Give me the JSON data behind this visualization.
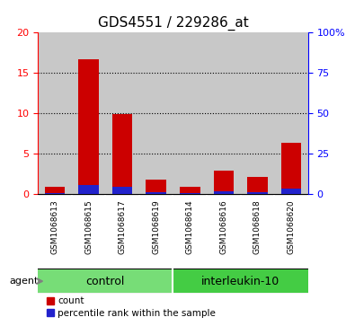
{
  "title": "GDS4551 / 229286_at",
  "samples": [
    "GSM1068613",
    "GSM1068615",
    "GSM1068617",
    "GSM1068619",
    "GSM1068614",
    "GSM1068616",
    "GSM1068618",
    "GSM1068620"
  ],
  "counts": [
    0.9,
    16.7,
    9.9,
    1.8,
    0.9,
    2.9,
    2.1,
    6.3
  ],
  "percentiles": [
    0.3,
    5.8,
    4.5,
    1.0,
    0.3,
    1.5,
    1.1,
    3.1
  ],
  "groups": [
    {
      "label": "control",
      "indices": [
        0,
        1,
        2,
        3
      ]
    },
    {
      "label": "interleukin-10",
      "indices": [
        4,
        5,
        6,
        7
      ]
    }
  ],
  "bar_color_red": "#cc0000",
  "bar_color_blue": "#2222cc",
  "bar_bg_color": "#c8c8c8",
  "group_color_1": "#77dd77",
  "group_color_2": "#44cc44",
  "plot_bg": "#ffffff",
  "ylim_left": [
    0,
    20
  ],
  "ylim_right": [
    0,
    100
  ],
  "yticks_left": [
    0,
    5,
    10,
    15,
    20
  ],
  "ytick_labels_left": [
    "0",
    "5",
    "10",
    "15",
    "20"
  ],
  "yticks_right": [
    0,
    25,
    50,
    75,
    100
  ],
  "ytick_labels_right": [
    "0",
    "25",
    "50",
    "75",
    "100%"
  ],
  "agent_label": "agent",
  "legend_count": "count",
  "legend_percentile": "percentile rank within the sample",
  "title_fontsize": 11,
  "tick_fontsize": 8,
  "sample_fontsize": 6.5,
  "group_fontsize": 9,
  "legend_fontsize": 7.5,
  "agent_fontsize": 8
}
